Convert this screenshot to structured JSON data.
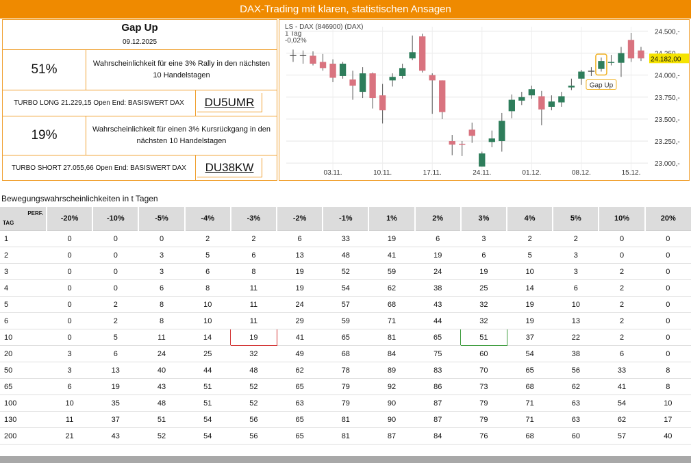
{
  "header": {
    "title": "DAX-Trading mit klaren, statistischen Ansagen"
  },
  "info": {
    "signal_title": "Gap Up",
    "signal_date": "09.12.2025",
    "rally": {
      "pct": "51%",
      "text": "Wahrscheinlichkeit für eine 3% Rally in den nächsten 10 Handelstagen"
    },
    "long": {
      "label": "TURBO LONG 21.229,15 Open End: BASISWERT DAX",
      "code": "DU5UMR"
    },
    "drop": {
      "pct": "19%",
      "text": "Wahrscheinlichkeit für einen 3% Kursrückgang in den nächsten 10 Handelstagen"
    },
    "short": {
      "label": "TURBO SHORT 27.055,66 Open End: BASISWERT DAX",
      "code": "DU38KW"
    }
  },
  "chart_data": {
    "type": "candlestick",
    "title": "LS - DAX (846900) (DAX)",
    "subtitle": "1 Tag",
    "change": "-0,02%",
    "last_price_label": "24.182,00",
    "annotation": "Gap Up",
    "ylim": [
      22900,
      24550
    ],
    "yticks": [
      {
        "v": 24500,
        "l": "24.500,-"
      },
      {
        "v": 24250,
        "l": "24.250,-"
      },
      {
        "v": 24000,
        "l": "24.000,-"
      },
      {
        "v": 23750,
        "l": "23.750,-"
      },
      {
        "v": 23500,
        "l": "23.500,-"
      },
      {
        "v": 23250,
        "l": "23.250,-"
      },
      {
        "v": 23000,
        "l": "23.000,-"
      }
    ],
    "xticks": [
      {
        "i": 4,
        "l": "03.11."
      },
      {
        "i": 9,
        "l": "10.11."
      },
      {
        "i": 14,
        "l": "17.11."
      },
      {
        "i": 19,
        "l": "24.11."
      },
      {
        "i": 24,
        "l": "01.12."
      },
      {
        "i": 29,
        "l": "08.12."
      },
      {
        "i": 34,
        "l": "15.12."
      }
    ],
    "candles": [
      {
        "o": 24230,
        "h": 24290,
        "l": 24150,
        "c": 24230
      },
      {
        "o": 24230,
        "h": 24280,
        "l": 24130,
        "c": 24230
      },
      {
        "o": 24220,
        "h": 24270,
        "l": 24110,
        "c": 24130
      },
      {
        "o": 24150,
        "h": 24240,
        "l": 24050,
        "c": 24080
      },
      {
        "o": 24130,
        "h": 24180,
        "l": 23920,
        "c": 23970
      },
      {
        "o": 23990,
        "h": 24150,
        "l": 23960,
        "c": 24130
      },
      {
        "o": 23950,
        "h": 24050,
        "l": 23720,
        "c": 23880
      },
      {
        "o": 23810,
        "h": 24090,
        "l": 23740,
        "c": 24020
      },
      {
        "o": 24020,
        "h": 24030,
        "l": 23620,
        "c": 23740
      },
      {
        "o": 23770,
        "h": 23900,
        "l": 23450,
        "c": 23600
      },
      {
        "o": 23940,
        "h": 24020,
        "l": 23870,
        "c": 23980
      },
      {
        "o": 23990,
        "h": 24130,
        "l": 23960,
        "c": 24080
      },
      {
        "o": 24190,
        "h": 24450,
        "l": 24170,
        "c": 24260
      },
      {
        "o": 24440,
        "h": 24470,
        "l": 24030,
        "c": 24050
      },
      {
        "o": 24000,
        "h": 24020,
        "l": 23560,
        "c": 23940
      },
      {
        "o": 23940,
        "h": 23940,
        "l": 23500,
        "c": 23580
      },
      {
        "o": 23250,
        "h": 23320,
        "l": 23090,
        "c": 23210
      },
      {
        "o": 23220,
        "h": 23250,
        "l": 23080,
        "c": 23210
      },
      {
        "o": 23380,
        "h": 23460,
        "l": 23230,
        "c": 23310
      },
      {
        "o": 22960,
        "h": 23130,
        "l": 22960,
        "c": 23110
      },
      {
        "o": 23240,
        "h": 23370,
        "l": 23180,
        "c": 23280
      },
      {
        "o": 23250,
        "h": 23570,
        "l": 23130,
        "c": 23480
      },
      {
        "o": 23590,
        "h": 23780,
        "l": 23510,
        "c": 23720
      },
      {
        "o": 23710,
        "h": 23810,
        "l": 23660,
        "c": 23750
      },
      {
        "o": 23770,
        "h": 23880,
        "l": 23730,
        "c": 23840
      },
      {
        "o": 23760,
        "h": 23820,
        "l": 23430,
        "c": 23610
      },
      {
        "o": 23640,
        "h": 23770,
        "l": 23600,
        "c": 23700
      },
      {
        "o": 23690,
        "h": 23810,
        "l": 23640,
        "c": 23760
      },
      {
        "o": 23860,
        "h": 23960,
        "l": 23830,
        "c": 23880
      },
      {
        "o": 23960,
        "h": 24060,
        "l": 23890,
        "c": 24040
      },
      {
        "o": 24050,
        "h": 24090,
        "l": 23990,
        "c": 24050
      },
      {
        "o": 24070,
        "h": 24200,
        "l": 24040,
        "c": 24160
      },
      {
        "o": 24140,
        "h": 24230,
        "l": 24110,
        "c": 24150
      },
      {
        "o": 24140,
        "h": 24320,
        "l": 23980,
        "c": 24250
      },
      {
        "o": 24400,
        "h": 24480,
        "l": 24150,
        "c": 24190
      },
      {
        "o": 24280,
        "h": 24320,
        "l": 24160,
        "c": 24190
      }
    ],
    "gap_up_index": 31
  },
  "table": {
    "title": "Bewegungswahrscheinlichkeiten in t Tagen",
    "corner_tag": "TAG",
    "corner_perf": "PERF.",
    "columns": [
      "-20%",
      "-10%",
      "-5%",
      "-4%",
      "-3%",
      "-2%",
      "-1%",
      "1%",
      "2%",
      "3%",
      "4%",
      "5%",
      "10%",
      "20%"
    ],
    "rows": [
      {
        "tag": "1",
        "values": [
          "0",
          "0",
          "0",
          "2",
          "2",
          "6",
          "33",
          "19",
          "6",
          "3",
          "2",
          "2",
          "0",
          "0"
        ]
      },
      {
        "tag": "2",
        "values": [
          "0",
          "0",
          "3",
          "5",
          "6",
          "13",
          "48",
          "41",
          "19",
          "6",
          "5",
          "3",
          "0",
          "0"
        ]
      },
      {
        "tag": "3",
        "values": [
          "0",
          "0",
          "3",
          "6",
          "8",
          "19",
          "52",
          "59",
          "24",
          "19",
          "10",
          "3",
          "2",
          "0"
        ]
      },
      {
        "tag": "4",
        "values": [
          "0",
          "0",
          "6",
          "8",
          "11",
          "19",
          "54",
          "62",
          "38",
          "25",
          "14",
          "6",
          "2",
          "0"
        ]
      },
      {
        "tag": "5",
        "values": [
          "0",
          "2",
          "8",
          "10",
          "11",
          "24",
          "57",
          "68",
          "43",
          "32",
          "19",
          "10",
          "2",
          "0"
        ]
      },
      {
        "tag": "6",
        "values": [
          "0",
          "2",
          "8",
          "10",
          "11",
          "29",
          "59",
          "71",
          "44",
          "32",
          "19",
          "13",
          "2",
          "0"
        ]
      },
      {
        "tag": "10",
        "values": [
          "0",
          "5",
          "11",
          "14",
          "19",
          "41",
          "65",
          "81",
          "65",
          "51",
          "37",
          "22",
          "2",
          "0"
        ]
      },
      {
        "tag": "20",
        "values": [
          "3",
          "6",
          "24",
          "25",
          "32",
          "49",
          "68",
          "84",
          "75",
          "60",
          "54",
          "38",
          "6",
          "0"
        ]
      },
      {
        "tag": "50",
        "values": [
          "3",
          "13",
          "40",
          "44",
          "48",
          "62",
          "78",
          "89",
          "83",
          "70",
          "65",
          "56",
          "33",
          "8"
        ]
      },
      {
        "tag": "65",
        "values": [
          "6",
          "19",
          "43",
          "51",
          "52",
          "65",
          "79",
          "92",
          "86",
          "73",
          "68",
          "62",
          "41",
          "8"
        ]
      },
      {
        "tag": "100",
        "values": [
          "10",
          "35",
          "48",
          "51",
          "52",
          "63",
          "79",
          "90",
          "87",
          "79",
          "71",
          "63",
          "54",
          "10"
        ]
      },
      {
        "tag": "130",
        "values": [
          "11",
          "37",
          "51",
          "54",
          "56",
          "65",
          "81",
          "90",
          "87",
          "79",
          "71",
          "63",
          "62",
          "17"
        ]
      },
      {
        "tag": "200",
        "values": [
          "21",
          "43",
          "52",
          "54",
          "56",
          "65",
          "81",
          "87",
          "84",
          "76",
          "68",
          "60",
          "57",
          "40"
        ]
      }
    ],
    "highlights": [
      {
        "row": 6,
        "col": 4,
        "color": "red"
      },
      {
        "row": 6,
        "col": 9,
        "color": "green"
      }
    ]
  },
  "colors": {
    "accent": "#ef8a00",
    "bull": "#2e7d5b",
    "bear": "#d9737f",
    "doji": "#555555",
    "highlight_red": "#d23030",
    "highlight_green": "#3a9a3a"
  }
}
